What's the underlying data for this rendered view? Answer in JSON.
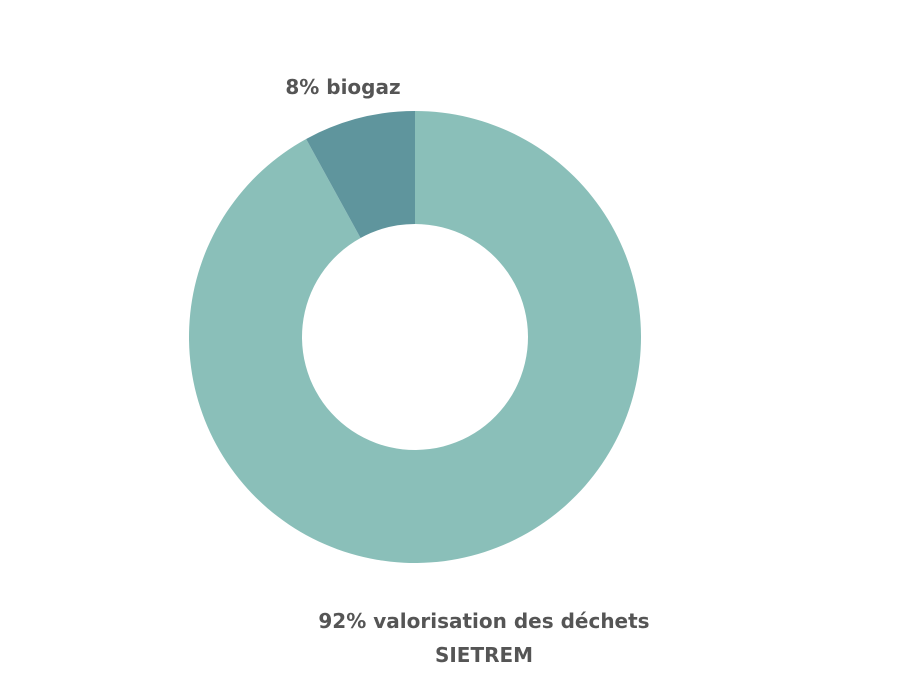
{
  "chart_data": {
    "type": "donut",
    "values": [
      92,
      8
    ],
    "value_labels": [
      "92% valorisation des déchets SIETREM",
      "8% biogaz"
    ],
    "colors": [
      "#8abfb9",
      "#5f959d"
    ]
  }
}
